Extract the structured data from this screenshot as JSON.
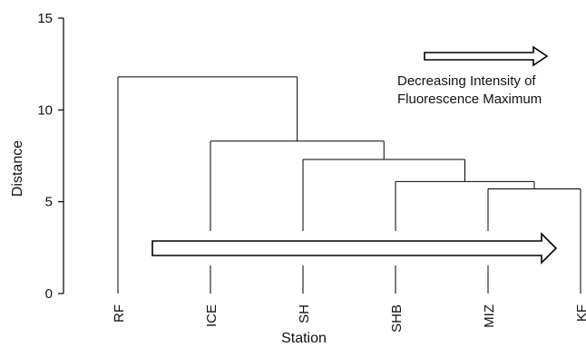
{
  "chart_data": {
    "type": "dendrogram",
    "title": "",
    "xlabel": "Station",
    "ylabel": "Distance",
    "ylim": [
      0,
      15
    ],
    "yticks": [
      0,
      5,
      10,
      15
    ],
    "leaves": [
      "RF",
      "ICE",
      "SH",
      "SHB",
      "MIZ",
      "KF"
    ],
    "merges": [
      {
        "left": "MIZ",
        "right": "KF",
        "distance": 5.7
      },
      {
        "left": "SHB",
        "right": "MIZ+KF",
        "distance": 6.1
      },
      {
        "left": "SH",
        "right": "SHB+MIZ+KF",
        "distance": 7.3
      },
      {
        "left": "ICE",
        "right": "SH+SHB+MIZ+KF",
        "distance": 8.3
      },
      {
        "left": "RF",
        "right": "ICE+SH+SHB+MIZ+KF",
        "distance": 11.8
      }
    ],
    "annotations": {
      "legend_arrow_line1": "Decreasing Intensity of",
      "legend_arrow_line2": "Fluorescence Maximum"
    }
  }
}
